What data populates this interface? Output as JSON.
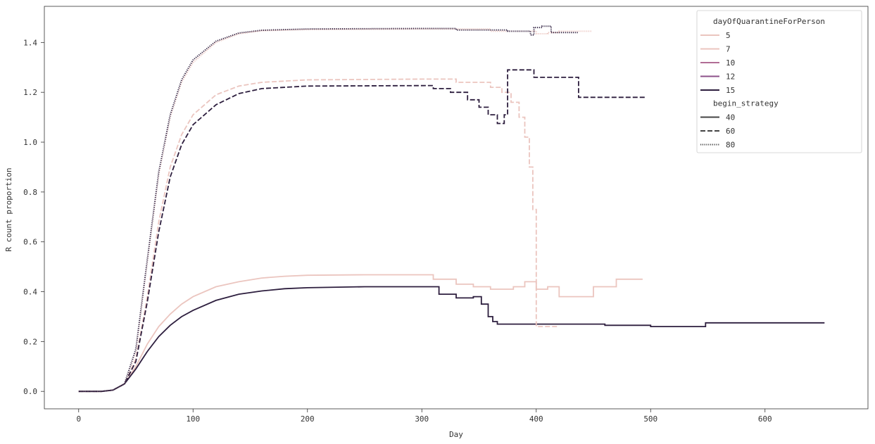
{
  "chart_data": {
    "type": "line",
    "xlabel": "Day",
    "ylabel": "R count proportion",
    "xlim": [
      -30,
      690
    ],
    "ylim": [
      -0.07,
      1.545
    ],
    "x_ticks": [
      "0",
      "100",
      "200",
      "300",
      "400",
      "500",
      "600"
    ],
    "x_tick_values": [
      0,
      100,
      200,
      300,
      400,
      500,
      600
    ],
    "y_ticks": [
      "0.0",
      "0.2",
      "0.4",
      "0.6",
      "0.8",
      "1.0",
      "1.2",
      "1.4"
    ],
    "y_tick_values": [
      0.0,
      0.2,
      0.4,
      0.6,
      0.8,
      1.0,
      1.2,
      1.4
    ],
    "grid": false,
    "legend_position": "top-right",
    "legend": {
      "hue_title": "dayOfQuarantineForPerson",
      "hue_entries": [
        {
          "label": "5",
          "color": "#ebc5bf"
        },
        {
          "label": "7",
          "color": "#ebc5bf"
        },
        {
          "label": "10",
          "color": "#b16d95"
        },
        {
          "label": "12",
          "color": "#8d5089"
        },
        {
          "label": "15",
          "color": "#2d1e3e"
        }
      ],
      "style_title": "begin_strategy",
      "style_entries": [
        {
          "label": "40",
          "dash": "solid"
        },
        {
          "label": "60",
          "dash": "dashed"
        },
        {
          "label": "80",
          "dash": "dotted"
        }
      ]
    },
    "series": [
      {
        "hue": "5",
        "style": "40",
        "color": "#ebc5bf",
        "dash": "solid",
        "points": [
          [
            0,
            0.0
          ],
          [
            20,
            0.0
          ],
          [
            30,
            0.005
          ],
          [
            40,
            0.03
          ],
          [
            50,
            0.1
          ],
          [
            60,
            0.19
          ],
          [
            70,
            0.26
          ],
          [
            80,
            0.31
          ],
          [
            90,
            0.35
          ],
          [
            100,
            0.38
          ],
          [
            120,
            0.42
          ],
          [
            140,
            0.44
          ],
          [
            160,
            0.455
          ],
          [
            180,
            0.462
          ],
          [
            200,
            0.466
          ],
          [
            250,
            0.468
          ],
          [
            310,
            0.468
          ],
          [
            310,
            0.45
          ],
          [
            330,
            0.45
          ],
          [
            330,
            0.43
          ],
          [
            345,
            0.43
          ],
          [
            345,
            0.42
          ],
          [
            360,
            0.42
          ],
          [
            360,
            0.41
          ],
          [
            380,
            0.41
          ],
          [
            380,
            0.42
          ],
          [
            390,
            0.42
          ],
          [
            390,
            0.44
          ],
          [
            400,
            0.44
          ],
          [
            400,
            0.41
          ],
          [
            410,
            0.41
          ],
          [
            410,
            0.42
          ],
          [
            420,
            0.42
          ],
          [
            420,
            0.38
          ],
          [
            450,
            0.38
          ],
          [
            450,
            0.42
          ],
          [
            470,
            0.42
          ],
          [
            470,
            0.45
          ],
          [
            493,
            0.45
          ]
        ]
      },
      {
        "hue": "15",
        "style": "40",
        "color": "#2d1e3e",
        "dash": "solid",
        "points": [
          [
            0,
            0.0
          ],
          [
            20,
            0.0
          ],
          [
            30,
            0.005
          ],
          [
            40,
            0.03
          ],
          [
            50,
            0.09
          ],
          [
            60,
            0.16
          ],
          [
            70,
            0.22
          ],
          [
            80,
            0.265
          ],
          [
            90,
            0.3
          ],
          [
            100,
            0.325
          ],
          [
            120,
            0.365
          ],
          [
            140,
            0.39
          ],
          [
            160,
            0.403
          ],
          [
            180,
            0.412
          ],
          [
            200,
            0.416
          ],
          [
            250,
            0.42
          ],
          [
            315,
            0.42
          ],
          [
            315,
            0.39
          ],
          [
            330,
            0.39
          ],
          [
            330,
            0.375
          ],
          [
            345,
            0.375
          ],
          [
            345,
            0.38
          ],
          [
            352,
            0.38
          ],
          [
            352,
            0.35
          ],
          [
            358,
            0.35
          ],
          [
            358,
            0.3
          ],
          [
            362,
            0.3
          ],
          [
            362,
            0.28
          ],
          [
            366,
            0.28
          ],
          [
            366,
            0.27
          ],
          [
            460,
            0.27
          ],
          [
            460,
            0.265
          ],
          [
            500,
            0.265
          ],
          [
            500,
            0.26
          ],
          [
            548,
            0.26
          ],
          [
            548,
            0.275
          ],
          [
            652,
            0.275
          ]
        ]
      },
      {
        "hue": "5",
        "style": "60",
        "color": "#ebc5bf",
        "dash": "dashed",
        "points": [
          [
            0,
            0.0
          ],
          [
            20,
            0.0
          ],
          [
            30,
            0.005
          ],
          [
            40,
            0.03
          ],
          [
            50,
            0.13
          ],
          [
            60,
            0.38
          ],
          [
            70,
            0.68
          ],
          [
            80,
            0.9
          ],
          [
            90,
            1.03
          ],
          [
            100,
            1.11
          ],
          [
            120,
            1.19
          ],
          [
            140,
            1.225
          ],
          [
            160,
            1.24
          ],
          [
            200,
            1.25
          ],
          [
            300,
            1.253
          ],
          [
            330,
            1.253
          ],
          [
            330,
            1.24
          ],
          [
            360,
            1.24
          ],
          [
            360,
            1.22
          ],
          [
            370,
            1.22
          ],
          [
            370,
            1.2
          ],
          [
            378,
            1.2
          ],
          [
            378,
            1.16
          ],
          [
            385,
            1.16
          ],
          [
            385,
            1.1
          ],
          [
            390,
            1.1
          ],
          [
            390,
            1.02
          ],
          [
            394,
            1.02
          ],
          [
            394,
            0.9
          ],
          [
            397,
            0.9
          ],
          [
            397,
            0.73
          ],
          [
            400,
            0.73
          ],
          [
            400,
            0.26
          ],
          [
            420,
            0.26
          ]
        ]
      },
      {
        "hue": "15",
        "style": "60",
        "color": "#2d1e3e",
        "dash": "dashed",
        "points": [
          [
            0,
            0.0
          ],
          [
            20,
            0.0
          ],
          [
            30,
            0.005
          ],
          [
            40,
            0.03
          ],
          [
            50,
            0.12
          ],
          [
            60,
            0.36
          ],
          [
            70,
            0.64
          ],
          [
            80,
            0.86
          ],
          [
            90,
            0.99
          ],
          [
            100,
            1.07
          ],
          [
            120,
            1.15
          ],
          [
            140,
            1.195
          ],
          [
            160,
            1.215
          ],
          [
            200,
            1.225
          ],
          [
            310,
            1.227
          ],
          [
            310,
            1.215
          ],
          [
            325,
            1.215
          ],
          [
            325,
            1.2
          ],
          [
            340,
            1.2
          ],
          [
            340,
            1.17
          ],
          [
            350,
            1.17
          ],
          [
            350,
            1.14
          ],
          [
            358,
            1.14
          ],
          [
            358,
            1.11
          ],
          [
            366,
            1.11
          ],
          [
            366,
            1.075
          ],
          [
            372,
            1.075
          ],
          [
            372,
            1.11
          ],
          [
            375,
            1.11
          ],
          [
            375,
            1.29
          ],
          [
            398,
            1.29
          ],
          [
            398,
            1.26
          ],
          [
            437,
            1.26
          ],
          [
            437,
            1.18
          ],
          [
            495,
            1.18
          ]
        ]
      },
      {
        "hue": "5",
        "style": "80",
        "color": "#ebc5bf",
        "dash": "dotted",
        "points": [
          [
            0,
            0.0
          ],
          [
            20,
            0.0
          ],
          [
            30,
            0.005
          ],
          [
            40,
            0.03
          ],
          [
            50,
            0.16
          ],
          [
            60,
            0.52
          ],
          [
            70,
            0.87
          ],
          [
            80,
            1.1
          ],
          [
            90,
            1.24
          ],
          [
            100,
            1.32
          ],
          [
            120,
            1.4
          ],
          [
            140,
            1.435
          ],
          [
            160,
            1.447
          ],
          [
            200,
            1.452
          ],
          [
            300,
            1.454
          ],
          [
            360,
            1.454
          ],
          [
            360,
            1.445
          ],
          [
            400,
            1.445
          ],
          [
            400,
            1.435
          ],
          [
            410,
            1.435
          ],
          [
            410,
            1.44
          ],
          [
            420,
            1.44
          ],
          [
            420,
            1.445
          ],
          [
            448,
            1.445
          ]
        ]
      },
      {
        "hue": "15",
        "style": "80",
        "color": "#2d1e3e",
        "dash": "dotted",
        "points": [
          [
            0,
            0.0
          ],
          [
            20,
            0.0
          ],
          [
            30,
            0.005
          ],
          [
            40,
            0.03
          ],
          [
            50,
            0.17
          ],
          [
            60,
            0.53
          ],
          [
            70,
            0.88
          ],
          [
            80,
            1.11
          ],
          [
            90,
            1.25
          ],
          [
            100,
            1.33
          ],
          [
            120,
            1.405
          ],
          [
            140,
            1.438
          ],
          [
            160,
            1.449
          ],
          [
            200,
            1.454
          ],
          [
            300,
            1.456
          ],
          [
            330,
            1.456
          ],
          [
            330,
            1.45
          ],
          [
            375,
            1.45
          ],
          [
            375,
            1.445
          ],
          [
            395,
            1.445
          ],
          [
            395,
            1.43
          ],
          [
            398,
            1.43
          ],
          [
            398,
            1.46
          ],
          [
            405,
            1.46
          ],
          [
            405,
            1.465
          ],
          [
            413,
            1.465
          ],
          [
            413,
            1.44
          ],
          [
            437,
            1.44
          ]
        ]
      }
    ]
  }
}
